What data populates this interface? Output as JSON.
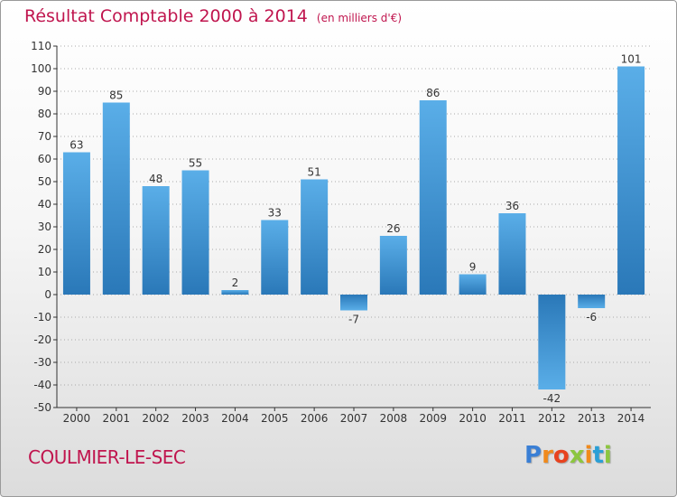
{
  "header": {
    "title": "Résultat Comptable 2000 à 2014",
    "subtitle": "(en milliers d'€)"
  },
  "footer": {
    "commune": "COULMIER-LE-SEC",
    "brand_letters": [
      "P",
      "r",
      "o",
      "x",
      "i",
      "t",
      "i"
    ],
    "brand_colors": [
      "#3a7fd5",
      "#f08a1c",
      "#e8431f",
      "#8cc63f",
      "#f08a1c",
      "#2a9fd6",
      "#8cc63f"
    ]
  },
  "colors": {
    "title": "#c0154e",
    "bar_light": "#5aaee8",
    "bar_dark": "#2a78b8",
    "grid": "#aaaaaa",
    "axis": "#333333"
  },
  "chart_data": {
    "type": "bar",
    "title": "Résultat Comptable 2000 à 2014",
    "subtitle": "(en milliers d'€)",
    "xlabel": "",
    "ylabel": "",
    "ylim": [
      -50,
      110
    ],
    "ytick_step": 10,
    "grid": true,
    "categories": [
      "2000",
      "2001",
      "2002",
      "2003",
      "2004",
      "2005",
      "2006",
      "2007",
      "2008",
      "2009",
      "2010",
      "2011",
      "2012",
      "2013",
      "2014"
    ],
    "values": [
      63,
      85,
      48,
      55,
      2,
      33,
      51,
      -7,
      26,
      86,
      9,
      36,
      -42,
      -6,
      101
    ]
  }
}
